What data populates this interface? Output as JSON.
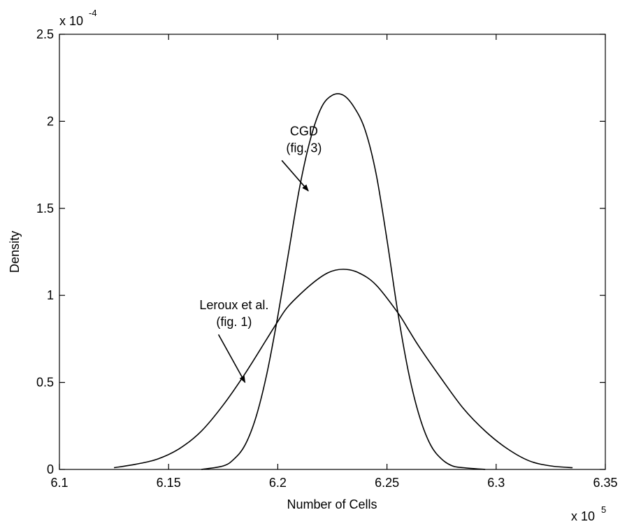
{
  "chart_data": {
    "type": "line",
    "title": "",
    "xlabel": "Number of Cells",
    "ylabel": "Density",
    "x_multiplier": "x 10",
    "x_multiplier_exp": "5",
    "y_multiplier": "x 10",
    "y_multiplier_exp": "-4",
    "xlim": [
      6.1,
      6.35
    ],
    "ylim": [
      0,
      2.5
    ],
    "xticks": [
      6.1,
      6.15,
      6.2,
      6.25,
      6.3,
      6.35
    ],
    "xtick_labels": [
      "6.1",
      "6.15",
      "6.2",
      "6.25",
      "6.3",
      "6.35"
    ],
    "yticks": [
      0,
      0.5,
      1,
      1.5,
      2,
      2.5
    ],
    "ytick_labels": [
      "0",
      "0.5",
      "1",
      "1.5",
      "2",
      "2.5"
    ],
    "grid": false,
    "series": [
      {
        "x": [
          6.125,
          6.135,
          6.145,
          6.155,
          6.165,
          6.175,
          6.185,
          6.195,
          6.2,
          6.205,
          6.215,
          6.223,
          6.23,
          6.237,
          6.245,
          6.255,
          6.26,
          6.265,
          6.275,
          6.285,
          6.295,
          6.305,
          6.315,
          6.325,
          6.335
        ],
        "values": [
          0.01,
          0.03,
          0.06,
          0.12,
          0.22,
          0.37,
          0.55,
          0.75,
          0.85,
          0.94,
          1.06,
          1.13,
          1.15,
          1.13,
          1.06,
          0.9,
          0.8,
          0.7,
          0.52,
          0.35,
          0.22,
          0.12,
          0.05,
          0.02,
          0.01
        ]
      },
      {
        "x": [
          6.165,
          6.175,
          6.18,
          6.185,
          6.19,
          6.195,
          6.2,
          6.205,
          6.21,
          6.215,
          6.22,
          6.225,
          6.23,
          6.235,
          6.24,
          6.245,
          6.25,
          6.255,
          6.26,
          6.265,
          6.27,
          6.275,
          6.28,
          6.285,
          6.295
        ],
        "values": [
          0.0,
          0.02,
          0.06,
          0.14,
          0.3,
          0.55,
          0.88,
          1.25,
          1.62,
          1.9,
          2.08,
          2.15,
          2.15,
          2.08,
          1.95,
          1.7,
          1.32,
          0.9,
          0.55,
          0.3,
          0.14,
          0.06,
          0.02,
          0.01,
          0.0
        ]
      }
    ],
    "annotations": [
      {
        "lines": [
          "CGD",
          "(fig. 3)"
        ],
        "arrow_to_x": 6.214,
        "arrow_to_y": 1.6,
        "text_x": 6.212,
        "text_y": 1.92
      },
      {
        "lines": [
          "Leroux et al.",
          "(fig. 1)"
        ],
        "arrow_to_x": 6.185,
        "arrow_to_y": 0.5,
        "text_x": 6.18,
        "text_y": 0.92
      }
    ]
  }
}
